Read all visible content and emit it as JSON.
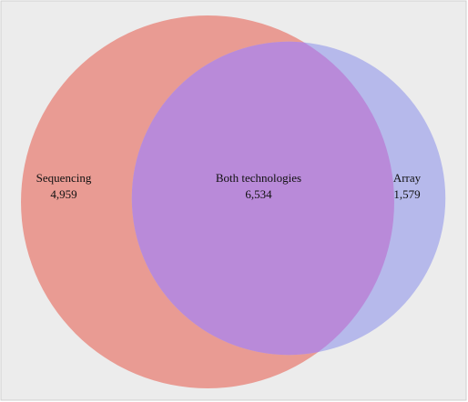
{
  "chart_data": {
    "type": "venn",
    "categories": [
      "Sequencing",
      "Both technologies",
      "Array"
    ],
    "values": [
      4959,
      6534,
      1579
    ],
    "value_labels": [
      "4,959",
      "6,534",
      "1,579"
    ],
    "colors": [
      "#e99b93",
      "#b98ad9",
      "#b6b9eb"
    ]
  }
}
